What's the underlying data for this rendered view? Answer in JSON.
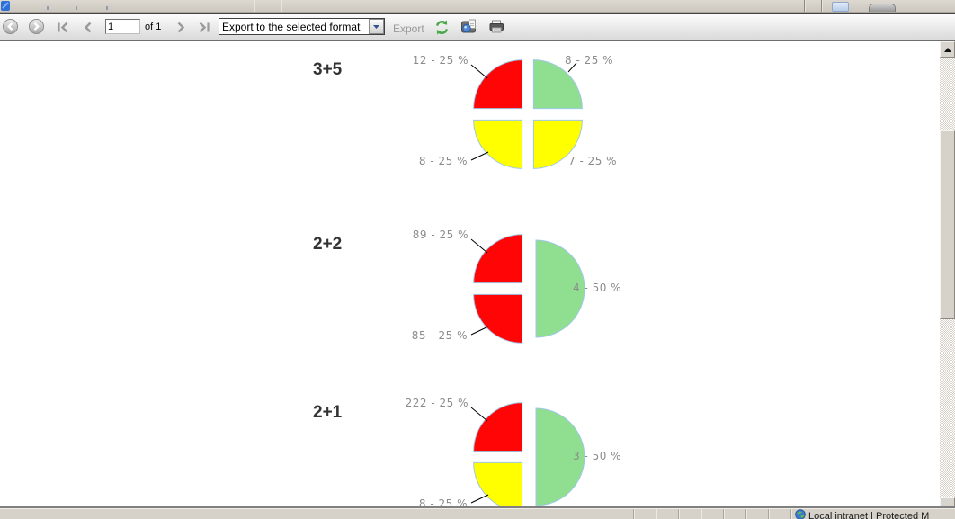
{
  "browser": {
    "tab_strip": {
      "favicon": "page-favicon"
    },
    "status_bar": {
      "zone_label": "Local intranet | Protected M",
      "globe_icon": "zone-globe-icon",
      "pane_count": 7
    }
  },
  "toolbar": {
    "back_icon": "back-circle-icon",
    "forward_icon": "forward-circle-icon",
    "first_page_icon": "first-page-icon",
    "prev_page_icon": "previous-page-icon",
    "page_input_value": "1",
    "page_count_label": "of 1",
    "next_page_icon": "next-page-icon",
    "last_page_icon": "last-page-icon",
    "export_select_value": "Export to the selected format",
    "export_link_label": "Export",
    "refresh_icon": "refresh-icon",
    "print_layout_icon": "print-layout-icon",
    "print_icon": "print-icon"
  },
  "report_style": {
    "slice_outline_color": "#9fc7e8",
    "label_color": "#8b8b8b",
    "row_label_color": "#333333",
    "callout_color": "#000000"
  },
  "chart_data": [
    {
      "type": "pie",
      "row_label": "3+5",
      "start_angle_deg": 180,
      "direction": "clockwise",
      "exploded": true,
      "slices": [
        {
          "value": 12,
          "percent": 25,
          "color": "#ff0505",
          "label": "12 - 25 %",
          "position": "top-left"
        },
        {
          "value": 8,
          "percent": 25,
          "color": "#90df90",
          "label": "8 - 25 %",
          "position": "top-right"
        },
        {
          "value": 7,
          "percent": 25,
          "color": "#ffff00",
          "label": "7 - 25 %",
          "position": "bottom-right"
        },
        {
          "value": 8,
          "percent": 25,
          "color": "#ffff00",
          "label": "8 - 25 %",
          "position": "bottom-left"
        }
      ]
    },
    {
      "type": "pie",
      "row_label": "2+2",
      "start_angle_deg": 180,
      "direction": "clockwise",
      "exploded": true,
      "slices": [
        {
          "value": 89,
          "percent": 25,
          "color": "#ff0505",
          "label": "89 - 25 %",
          "position": "top-left"
        },
        {
          "value": 4,
          "percent": 50,
          "color": "#90df90",
          "label": "4 - 50 %",
          "position": "right"
        },
        {
          "value": 85,
          "percent": 25,
          "color": "#ff0505",
          "label": "85 - 25 %",
          "position": "bottom-left"
        }
      ]
    },
    {
      "type": "pie",
      "row_label": "2+1",
      "start_angle_deg": 180,
      "direction": "clockwise",
      "exploded": true,
      "slices": [
        {
          "value": 222,
          "percent": 25,
          "color": "#ff0505",
          "label": "222 - 25 %",
          "position": "top-left"
        },
        {
          "value": 3,
          "percent": 50,
          "color": "#90df90",
          "label": "3 - 50 %",
          "position": "right"
        },
        {
          "value": 8,
          "percent": 25,
          "color": "#ffff00",
          "label": "8 - 25 %",
          "position": "bottom-left"
        }
      ]
    }
  ]
}
